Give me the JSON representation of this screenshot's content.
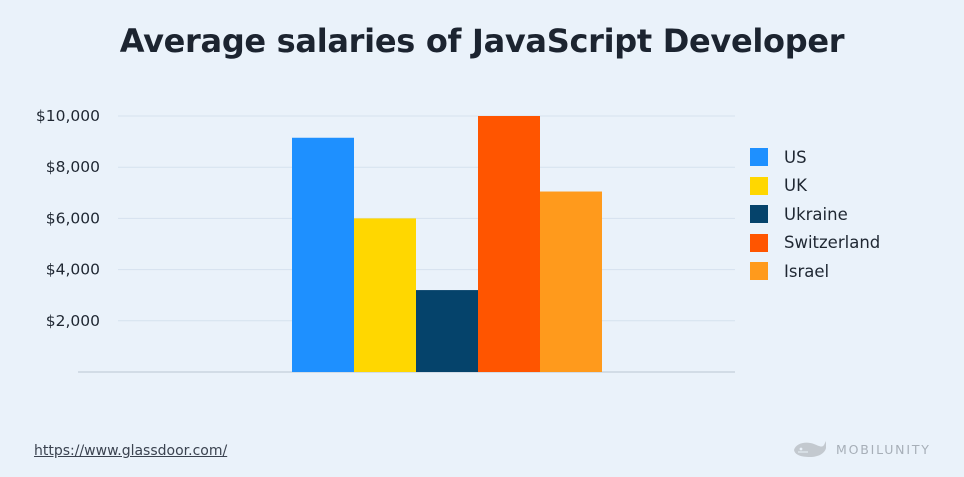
{
  "page": {
    "title": "Average salaries of JavaScript Developer",
    "source": "https://www.glassdoor.com/",
    "brand": "MOBILUNITY"
  },
  "chart_data": {
    "type": "bar",
    "title": "Average salaries of JavaScript Developer",
    "xlabel": "",
    "ylabel": "",
    "ylim": [
      0,
      10000
    ],
    "yticks": [
      2000,
      4000,
      6000,
      8000,
      10000
    ],
    "ytick_labels": [
      "$2,000",
      "$4,000",
      "$6,000",
      "$8,000",
      "$10,000"
    ],
    "grid": true,
    "legend_position": "right",
    "series": [
      {
        "name": "US",
        "value": 9150,
        "color": "#1e90ff"
      },
      {
        "name": "UK",
        "value": 6000,
        "color": "#ffd700"
      },
      {
        "name": "Ukraine",
        "value": 3200,
        "color": "#05436b"
      },
      {
        "name": "Switzerland",
        "value": 10000,
        "color": "#ff5500"
      },
      {
        "name": "Israel",
        "value": 7050,
        "color": "#ff9a1c"
      }
    ]
  }
}
